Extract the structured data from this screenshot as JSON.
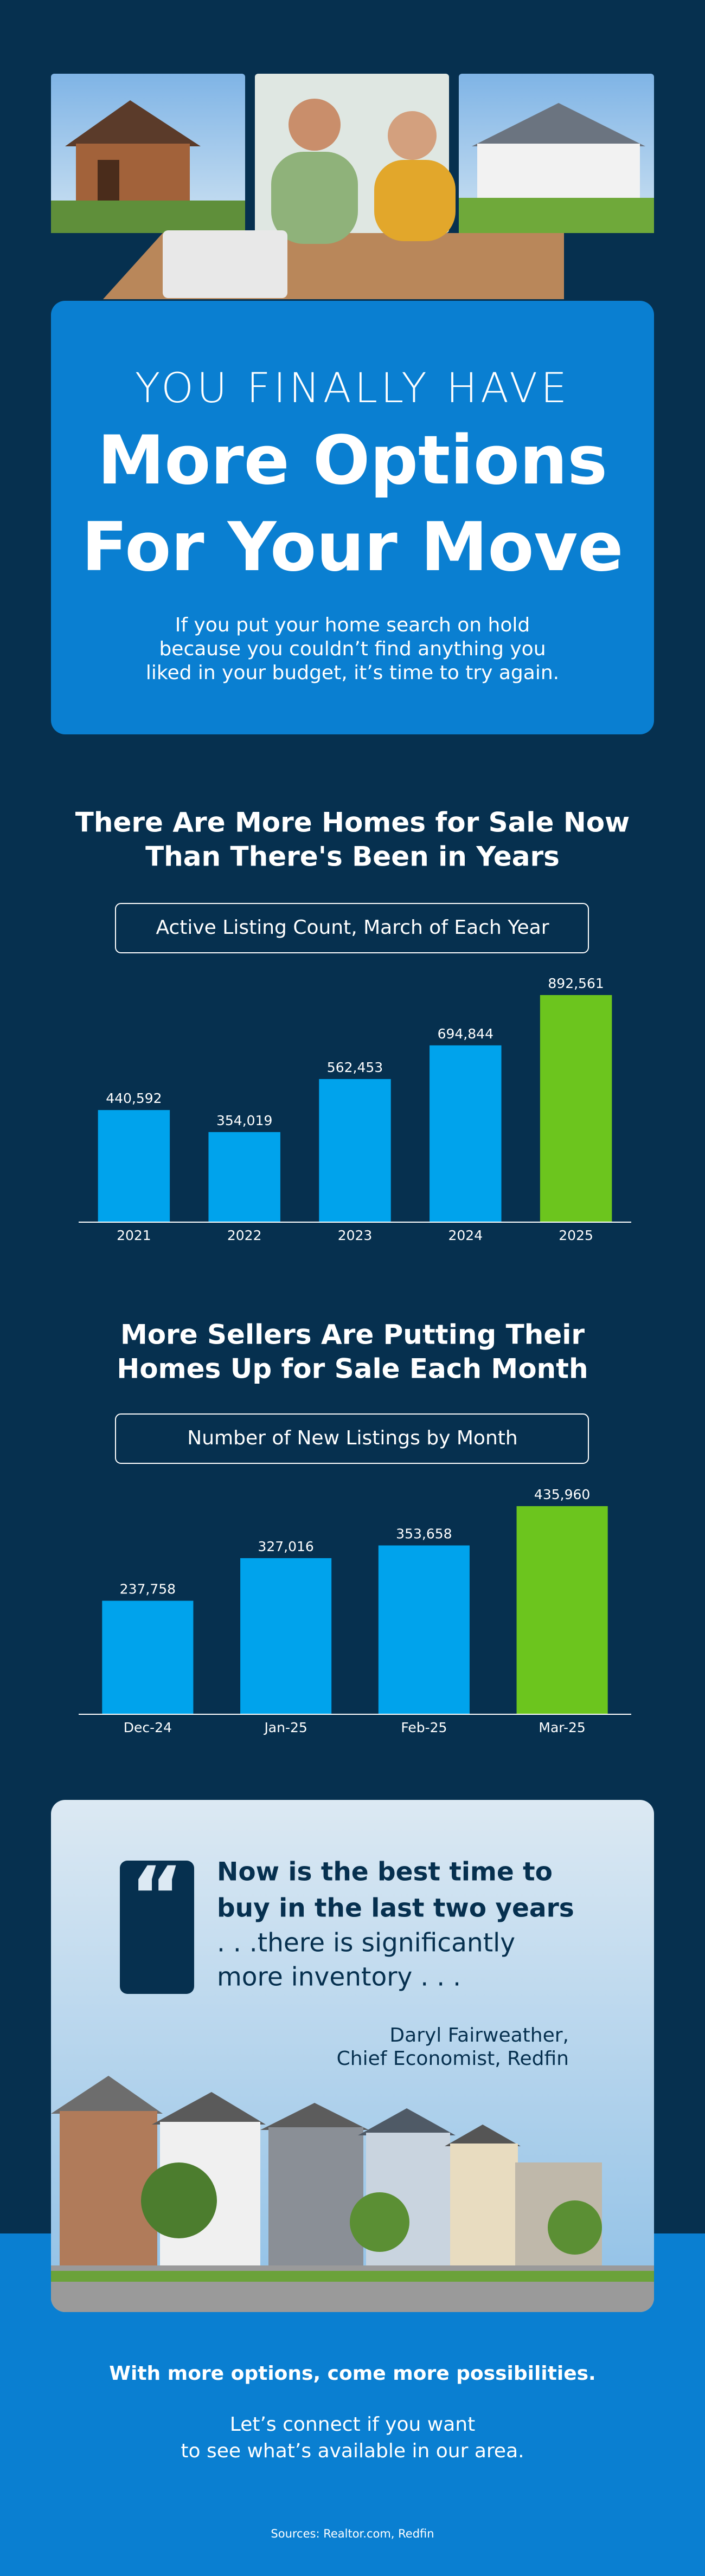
{
  "header": {
    "kicker": "YOU FINALLY HAVE",
    "headline": [
      "More Options",
      "For Your Move"
    ],
    "intro": [
      "If you put your home search on hold",
      "because you couldn’t find anything you",
      "liked in your budget, it’s time to try again."
    ]
  },
  "chart_data": [
    {
      "type": "bar",
      "title": [
        "There Are More Homes for Sale Now",
        "Than There's Been in Years"
      ],
      "subtitle": "Active Listing Count, March of Each Year",
      "categories": [
        "2021",
        "2022",
        "2023",
        "2024",
        "2025"
      ],
      "values": [
        440592,
        354019,
        562453,
        694844,
        892561
      ],
      "value_labels": [
        "440,592",
        "354,019",
        "562,453",
        "694,844",
        "892,561"
      ],
      "colors": [
        "#00a3ec",
        "#00a3ec",
        "#00a3ec",
        "#00a3ec",
        "#6cc51e"
      ],
      "ylim": [
        0,
        950000
      ]
    },
    {
      "type": "bar",
      "title": [
        "More Sellers Are Putting Their",
        "Homes Up for Sale Each Month"
      ],
      "subtitle": "Number of New Listings by Month",
      "categories": [
        "Dec-24",
        "Jan-25",
        "Feb-25",
        "Mar-25"
      ],
      "values": [
        237758,
        327016,
        353658,
        435960
      ],
      "value_labels": [
        "237,758",
        "327,016",
        "353,658",
        "435,960"
      ],
      "colors": [
        "#00a3ec",
        "#00a3ec",
        "#00a3ec",
        "#6cc51e"
      ],
      "ylim": [
        0,
        470000
      ]
    }
  ],
  "quote": {
    "bold_lines": [
      "Now is the best time to",
      "buy in the last two years"
    ],
    "lines": [
      ". . .there is significantly",
      "more inventory . . ."
    ],
    "attribution": [
      "Daryl Fairweather,",
      "Chief Economist, Redfin"
    ]
  },
  "footer": {
    "tagline": "With more options, come more possibilities.",
    "cta": [
      "Let’s connect if you want",
      "to see what’s available in our area."
    ],
    "sources": "Sources: Realtor.com, Redfin"
  }
}
